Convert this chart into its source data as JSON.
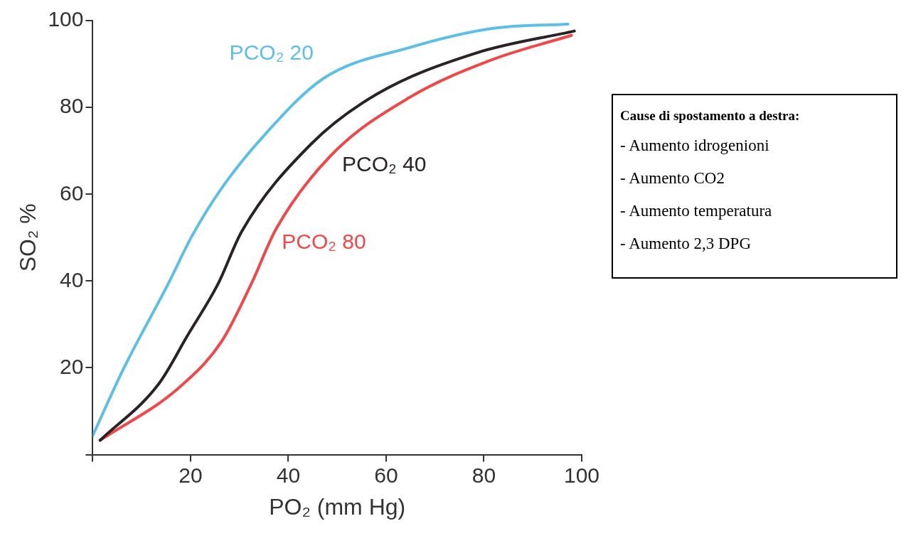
{
  "chart_data": {
    "type": "line",
    "xlabel": "PO₂ (mm Hg)",
    "ylabel": "SO₂ %",
    "xlim": [
      0,
      100
    ],
    "ylim": [
      0,
      100
    ],
    "xticks": [
      {
        "value": 0,
        "label": null
      },
      20,
      40,
      60,
      80,
      100
    ],
    "yticks": [
      {
        "value": 0,
        "label": null
      },
      20,
      40,
      60,
      80,
      100
    ],
    "grid": false,
    "legend": false,
    "marker": "none",
    "line_style": "solid",
    "series": [
      {
        "name": "PCO₂ 20",
        "color": "#5bbfe6",
        "x": [
          0,
          6.3,
          15.4,
          20.3,
          26.3,
          35,
          47.2,
          64.8,
          81.7,
          97.2
        ],
        "values": [
          4.4,
          19.8,
          39.3,
          50.4,
          61.3,
          73.5,
          86.7,
          93.8,
          98.2,
          99.2
        ]
      },
      {
        "name": "PCO₂ 40",
        "color": "#2a2226",
        "x": [
          1.5,
          13.5,
          19.4,
          25.6,
          30.5,
          44.6,
          58,
          78.3,
          98.5
        ],
        "values": [
          3.3,
          16.3,
          27.5,
          39.3,
          51.5,
          71.5,
          83,
          92.5,
          97.6
        ]
      },
      {
        "name": "PCO₂ 80",
        "color": "#f04848",
        "x": [
          1.5,
          17.5,
          26.3,
          32.4,
          37.5,
          48.6,
          64.8,
          81.7,
          97.9
        ],
        "values": [
          3.3,
          15.3,
          26,
          39.3,
          52,
          68.8,
          82.3,
          91,
          96.6
        ]
      }
    ],
    "annotations": [
      "Cause di spostamento a destra:",
      "- Aumento idrogenioni",
      "- Aumento CO2",
      "- Aumento temperatura",
      "- Aumento 2,3 DPG"
    ]
  }
}
